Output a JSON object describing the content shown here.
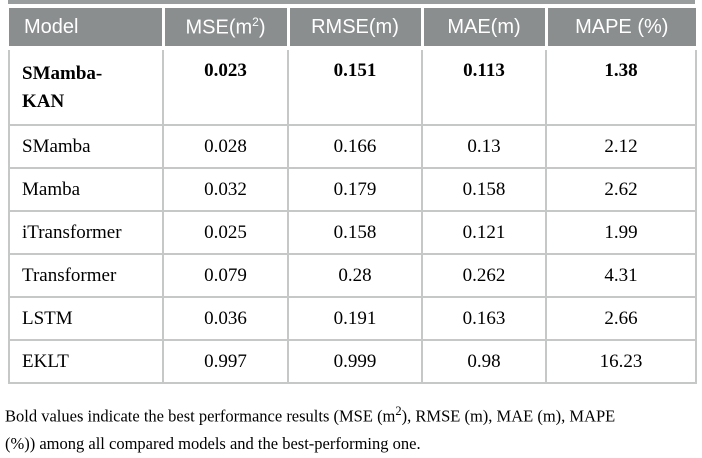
{
  "colors": {
    "header_bg": "#8a8e8f",
    "header_text": "#ffffff",
    "body_text": "#000000",
    "grid_line": "#c6c8c8",
    "top_rule": "#999d9e",
    "page_bg": "#ffffff"
  },
  "table": {
    "headers": [
      {
        "label": "Model"
      },
      {
        "label": "MSE(m²)"
      },
      {
        "label": "RMSE(m)"
      },
      {
        "label": "MAE(m)"
      },
      {
        "label": "MAPE (%)"
      }
    ],
    "rows": [
      {
        "model": "SMamba-KAN",
        "mse": "0.023",
        "rmse": "0.151",
        "mae": "0.113",
        "mape": "1.38",
        "bold": true
      },
      {
        "model": "SMamba",
        "mse": "0.028",
        "rmse": "0.166",
        "mae": "0.13",
        "mape": "2.12",
        "bold": false
      },
      {
        "model": "Mamba",
        "mse": "0.032",
        "rmse": "0.179",
        "mae": "0.158",
        "mape": "2.62",
        "bold": false
      },
      {
        "model": "iTransformer",
        "mse": "0.025",
        "rmse": "0.158",
        "mae": "0.121",
        "mape": "1.99",
        "bold": false
      },
      {
        "model": "Transformer",
        "mse": "0.079",
        "rmse": "0.28",
        "mae": "0.262",
        "mape": "4.31",
        "bold": false
      },
      {
        "model": "LSTM",
        "mse": "0.036",
        "rmse": "0.191",
        "mae": "0.163",
        "mape": "2.66",
        "bold": false
      },
      {
        "model": "EKLT",
        "mse": "0.997",
        "rmse": "0.999",
        "mae": "0.98",
        "mape": "16.23",
        "bold": false
      }
    ]
  },
  "footnote": {
    "lines": [
      "Bold values indicate the best performance results (MSE (m²), RMSE (m), MAE (m), MAPE",
      "(%)) among all compared models and the best-performing one."
    ]
  }
}
